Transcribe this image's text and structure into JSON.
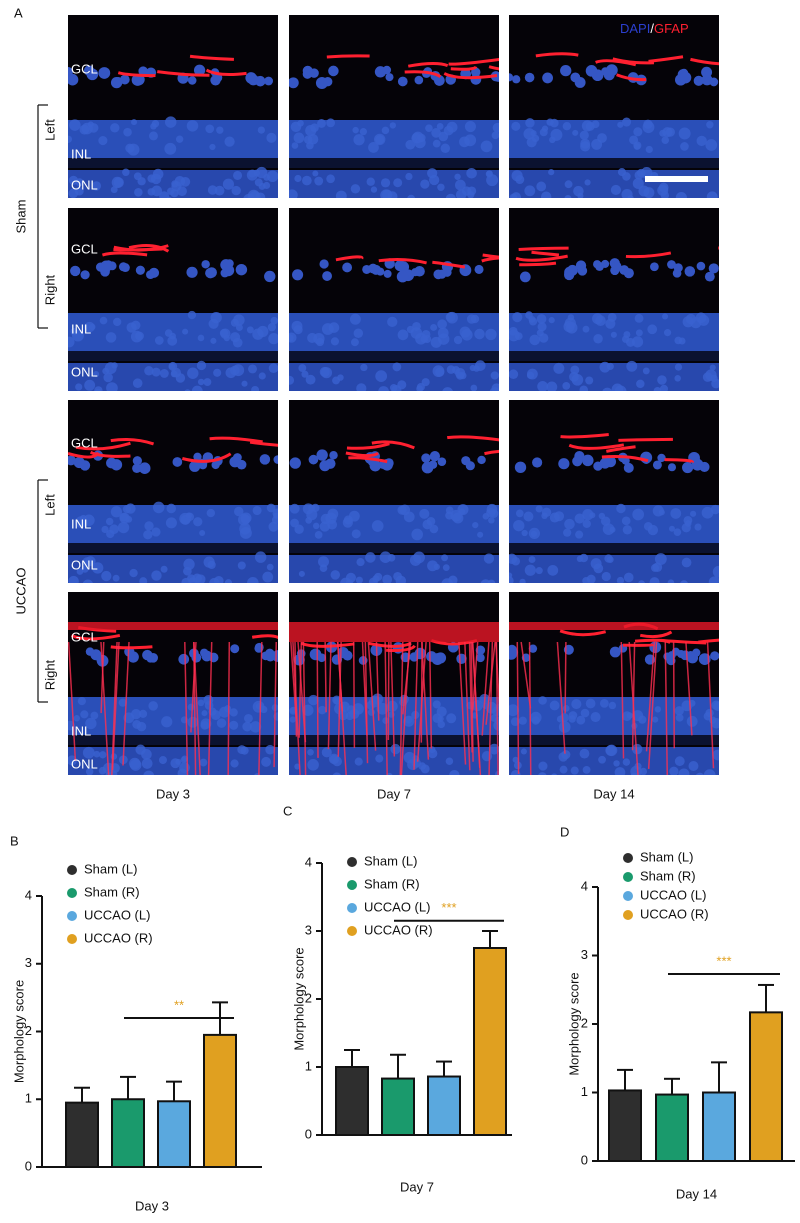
{
  "panel_a": {
    "label": "A",
    "stain": {
      "dapi": "DAPI",
      "slash": "/",
      "gfap": "GFAP"
    },
    "layers": [
      "GCL",
      "INL",
      "ONL"
    ],
    "groups": [
      {
        "name": "Sham",
        "sides": [
          "Left",
          "Right"
        ]
      },
      {
        "name": "UCCAO",
        "sides": [
          "Left",
          "Right"
        ]
      }
    ],
    "days": [
      "Day 3",
      "Day 7",
      "Day 14"
    ]
  },
  "chart_data": [
    {
      "type": "bar",
      "panel": "B",
      "xlabel": "Day 3",
      "ylabel": "Morphology score",
      "ylim": [
        0,
        4
      ],
      "yticks": [
        0,
        1,
        2,
        3,
        4
      ],
      "series": [
        {
          "name": "Sham (L)",
          "color": "#2e2e2e",
          "values": [
            0.95
          ],
          "errors": [
            0.22
          ]
        },
        {
          "name": "Sham (R)",
          "color": "#1a9a6c",
          "values": [
            1.0
          ],
          "errors": [
            0.33
          ]
        },
        {
          "name": "UCCAO (L)",
          "color": "#5aa8de",
          "values": [
            0.97
          ],
          "errors": [
            0.29
          ]
        },
        {
          "name": "UCCAO (R)",
          "color": "#e0a020",
          "values": [
            1.95
          ],
          "errors": [
            0.48
          ]
        }
      ],
      "annotation": {
        "text": "**",
        "y": 2.2,
        "color": "#e0a020"
      }
    },
    {
      "type": "bar",
      "panel": "C",
      "xlabel": "Day 7",
      "ylabel": "Morphology score",
      "ylim": [
        0,
        4
      ],
      "yticks": [
        0,
        1,
        2,
        3,
        4
      ],
      "series": [
        {
          "name": "Sham (L)",
          "color": "#2e2e2e",
          "values": [
            1.0
          ],
          "errors": [
            0.25
          ]
        },
        {
          "name": "Sham (R)",
          "color": "#1a9a6c",
          "values": [
            0.83
          ],
          "errors": [
            0.35
          ]
        },
        {
          "name": "UCCAO (L)",
          "color": "#5aa8de",
          "values": [
            0.86
          ],
          "errors": [
            0.22
          ]
        },
        {
          "name": "UCCAO (R)",
          "color": "#e0a020",
          "values": [
            2.75
          ],
          "errors": [
            0.25
          ]
        }
      ],
      "annotation": {
        "text": "***",
        "y": 3.15,
        "color": "#e0a020"
      }
    },
    {
      "type": "bar",
      "panel": "D",
      "xlabel": "Day 14",
      "ylabel": "Morphology score",
      "ylim": [
        0,
        4
      ],
      "yticks": [
        0,
        1,
        2,
        3,
        4
      ],
      "series": [
        {
          "name": "Sham (L)",
          "color": "#2e2e2e",
          "values": [
            1.03
          ],
          "errors": [
            0.3
          ]
        },
        {
          "name": "Sham (R)",
          "color": "#1a9a6c",
          "values": [
            0.97
          ],
          "errors": [
            0.23
          ]
        },
        {
          "name": "UCCAO (L)",
          "color": "#5aa8de",
          "values": [
            1.0
          ],
          "errors": [
            0.44
          ]
        },
        {
          "name": "UCCAO (R)",
          "color": "#e0a020",
          "values": [
            2.17
          ],
          "errors": [
            0.4
          ]
        }
      ],
      "annotation": {
        "text": "***",
        "y": 2.73,
        "color": "#e0a020"
      }
    }
  ]
}
